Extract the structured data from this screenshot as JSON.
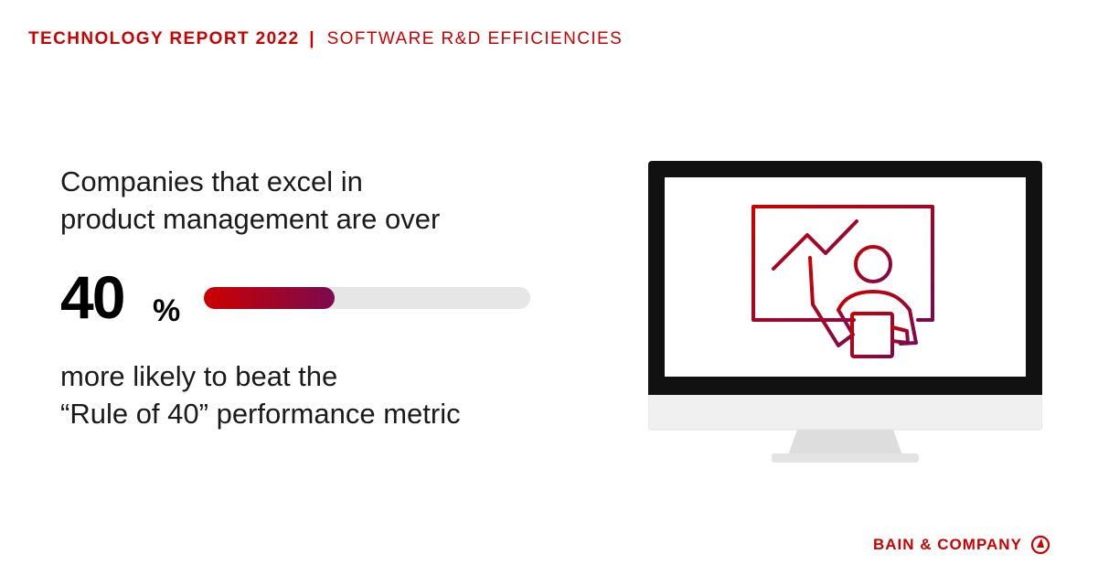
{
  "header": {
    "title": "TECHNOLOGY REPORT 2022",
    "separator": "|",
    "subtitle": "SOFTWARE R&D EFFICIENCIES"
  },
  "lead": {
    "line1": "Companies that excel in",
    "line2": "product management are over"
  },
  "stat": {
    "number": "40",
    "unit": "%",
    "bar_fill_percent": 40
  },
  "trail": {
    "line1": "more likely to beat the",
    "line2": "“Rule of 40” performance metric"
  },
  "illustration": {
    "icon": "presentation-monitor-icon",
    "colors": {
      "start": "#cc0000",
      "end": "#7a0a4e"
    }
  },
  "logo": {
    "text": "BAIN & COMPANY",
    "icon": "bain-compass-icon"
  },
  "colors": {
    "brand_red": "#cc0000",
    "bar_track": "#e6e6e6",
    "text": "#1a1a1a"
  }
}
